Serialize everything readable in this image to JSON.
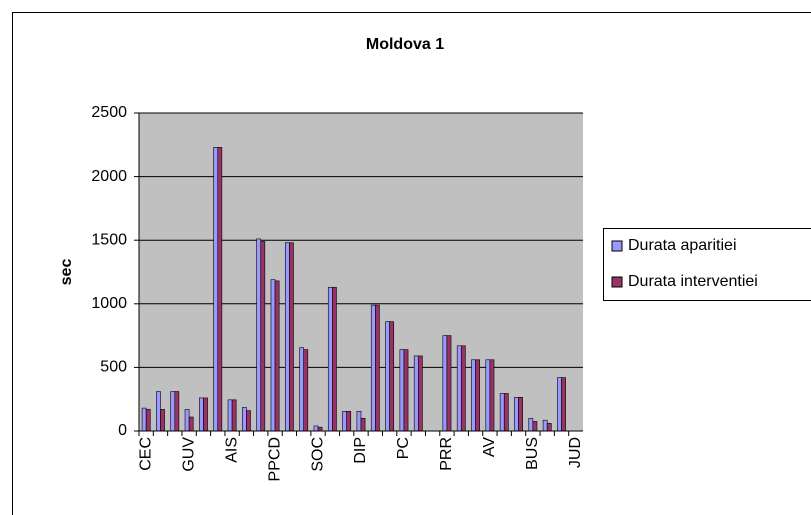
{
  "chart_data": {
    "type": "bar",
    "title": "Moldova 1",
    "y_label": "sec",
    "categories": [
      "CEC",
      null,
      null,
      "GUV",
      null,
      null,
      "AIS",
      null,
      null,
      "PPCD",
      null,
      null,
      "SOC",
      null,
      null,
      "DIP",
      null,
      null,
      "PC",
      null,
      null,
      "PRR",
      null,
      null,
      "AV",
      null,
      null,
      "BUS",
      null,
      null,
      "JUD"
    ],
    "series": [
      {
        "name": "Durata aparitiei",
        "color": "#9999ff",
        "values": [
          180,
          310,
          310,
          170,
          260,
          2230,
          245,
          185,
          1510,
          1190,
          1480,
          655,
          40,
          1130,
          155,
          155,
          990,
          860,
          640,
          590,
          null,
          750,
          670,
          560,
          560,
          295,
          265,
          100,
          85,
          420,
          null
        ]
      },
      {
        "name": "Durata interventiei",
        "color": "#993366",
        "values": [
          170,
          170,
          310,
          110,
          260,
          2230,
          245,
          160,
          1490,
          1180,
          1480,
          640,
          30,
          1130,
          155,
          100,
          990,
          860,
          640,
          590,
          null,
          750,
          670,
          560,
          560,
          295,
          265,
          75,
          60,
          420,
          null
        ]
      }
    ],
    "ylim": [
      0,
      2500
    ],
    "yticks": [
      0,
      500,
      1000,
      1500,
      2000,
      2500
    ],
    "grid": true,
    "legend": "right"
  }
}
